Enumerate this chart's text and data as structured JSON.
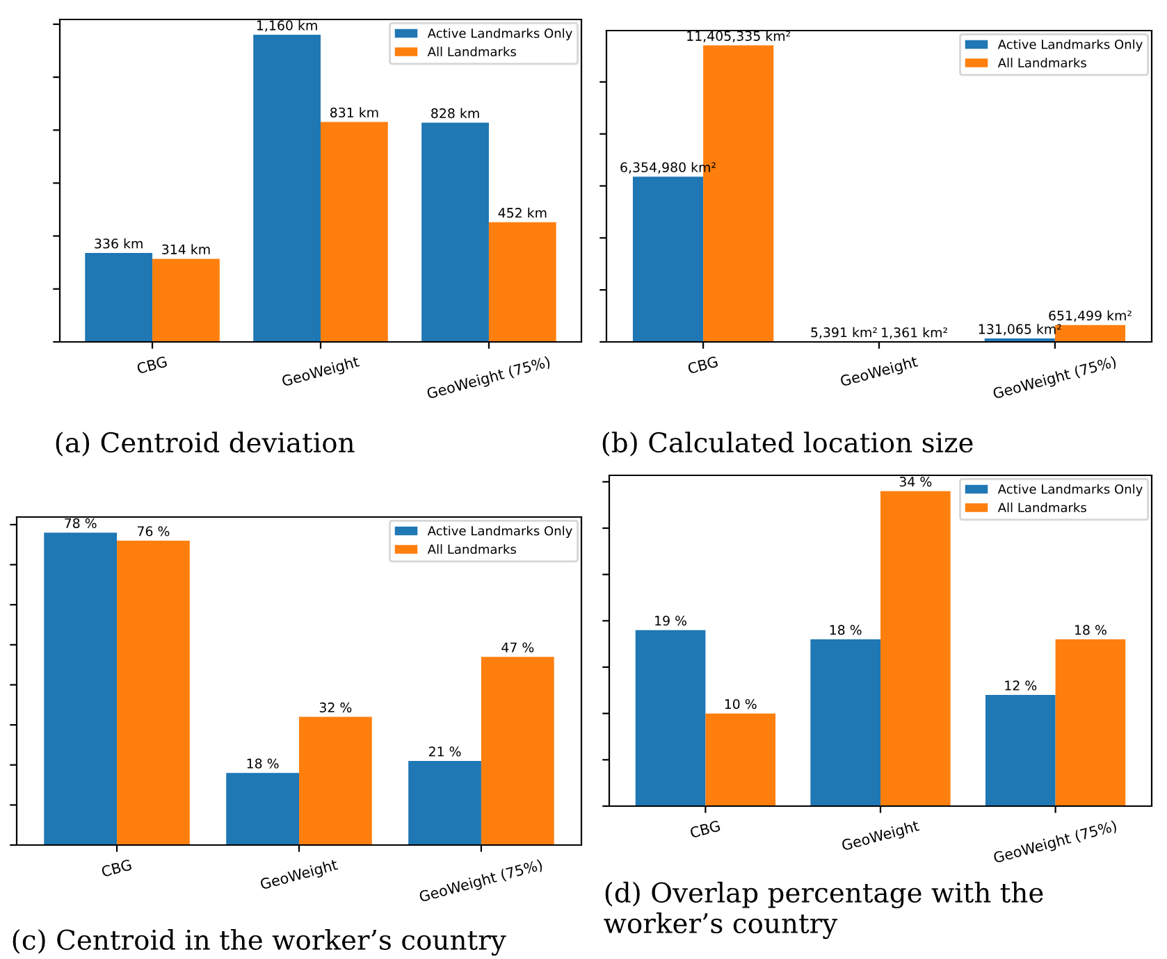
{
  "chart_data": [
    {
      "type": "bar",
      "title": "(a) Centroid deviation",
      "categories": [
        "CBG",
        "GeoWeight",
        "GeoWeight (75%)"
      ],
      "series": [
        {
          "name": "Active Landmarks Only",
          "color": "#1f77b4",
          "values": [
            336,
            1160,
            828
          ],
          "value_labels": [
            "336 km",
            "1,160 km",
            "828 km"
          ]
        },
        {
          "name": "All Landmarks",
          "color": "#ff7f0e",
          "values": [
            314,
            831,
            452
          ],
          "value_labels": [
            "314 km",
            "831 km",
            "452 km"
          ]
        }
      ],
      "ylim": [
        0,
        1218
      ],
      "yticks": [
        {
          "value": 0,
          "label": null
        },
        {
          "value": 200,
          "label": null
        },
        {
          "value": 400,
          "label": null
        },
        {
          "value": 600,
          "label": null
        },
        {
          "value": 800,
          "label": null
        },
        {
          "value": 1000,
          "label": null
        },
        {
          "value": 1200,
          "label": null
        }
      ],
      "legend": "top right",
      "grid": false
    },
    {
      "type": "bar",
      "title": "(b) Calculated location size",
      "categories": [
        "CBG",
        "GeoWeight",
        "GeoWeight (75%)"
      ],
      "series": [
        {
          "name": "Active Landmarks Only",
          "color": "#1f77b4",
          "values": [
            6354980,
            5391,
            131065
          ],
          "value_labels": [
            "6,354,980 km²",
            "5,391 km²",
            "131,065 km²"
          ]
        },
        {
          "name": "All Landmarks",
          "color": "#ff7f0e",
          "values": [
            11405335,
            1361,
            651499
          ],
          "value_labels": [
            "11,405,335 km²",
            "1,361 km²",
            "651,499 km²"
          ]
        }
      ],
      "ylim": [
        0,
        11975602
      ],
      "yticks": [
        {
          "value": 0,
          "label": null
        },
        {
          "value": 2000000,
          "label": null
        },
        {
          "value": 4000000,
          "label": null
        },
        {
          "value": 6000000,
          "label": null
        },
        {
          "value": 8000000,
          "label": null
        },
        {
          "value": 10000000,
          "label": null
        }
      ],
      "legend": "top right",
      "grid": false
    },
    {
      "type": "bar",
      "title": "(c) Centroid in the worker’s country",
      "categories": [
        "CBG",
        "GeoWeight",
        "GeoWeight (75%)"
      ],
      "series": [
        {
          "name": "Active Landmarks Only",
          "color": "#1f77b4",
          "values": [
            78,
            18,
            21
          ],
          "value_labels": [
            "78 %",
            "18 %",
            "21 %"
          ]
        },
        {
          "name": "All Landmarks",
          "color": "#ff7f0e",
          "values": [
            76,
            32,
            47
          ],
          "value_labels": [
            "76 %",
            "32 %",
            "47 %"
          ]
        }
      ],
      "ylim": [
        0,
        81.9
      ],
      "yticks": [
        {
          "value": 0,
          "label": null
        },
        {
          "value": 10,
          "label": null
        },
        {
          "value": 20,
          "label": null
        },
        {
          "value": 30,
          "label": null
        },
        {
          "value": 40,
          "label": null
        },
        {
          "value": 50,
          "label": null
        },
        {
          "value": 60,
          "label": null
        },
        {
          "value": 70,
          "label": null
        },
        {
          "value": 80,
          "label": null
        }
      ],
      "legend": "top right",
      "grid": false
    },
    {
      "type": "bar",
      "title": "(d) Overlap percentage with the worker’s country",
      "categories": [
        "CBG",
        "GeoWeight",
        "GeoWeight (75%)"
      ],
      "series": [
        {
          "name": "Active Landmarks Only",
          "color": "#1f77b4",
          "values": [
            19,
            18,
            12
          ],
          "value_labels": [
            "19 %",
            "18 %",
            "12 %"
          ]
        },
        {
          "name": "All Landmarks",
          "color": "#ff7f0e",
          "values": [
            10,
            34,
            18
          ],
          "value_labels": [
            "10 %",
            "34 %",
            "18 %"
          ]
        }
      ],
      "ylim": [
        0,
        35.7
      ],
      "yticks": [
        {
          "value": 0,
          "label": null
        },
        {
          "value": 5,
          "label": null
        },
        {
          "value": 10,
          "label": null
        },
        {
          "value": 15,
          "label": null
        },
        {
          "value": 20,
          "label": null
        },
        {
          "value": 25,
          "label": null
        },
        {
          "value": 30,
          "label": null
        },
        {
          "value": 35,
          "label": null
        }
      ],
      "legend": "top right",
      "grid": false
    }
  ]
}
